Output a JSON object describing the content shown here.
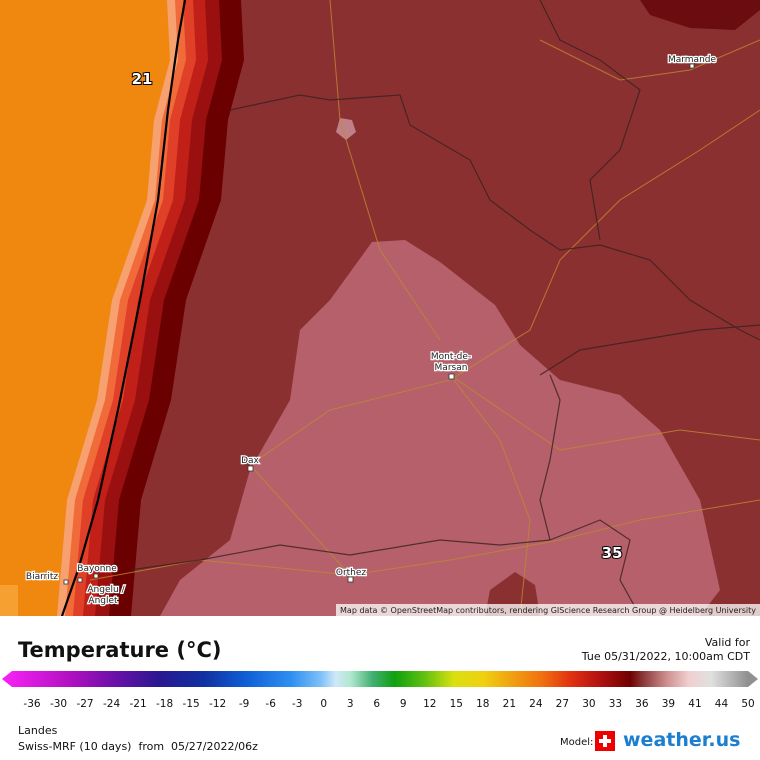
{
  "map": {
    "places": [
      [
        "Marmande"
      ],
      [
        "Mont-de-",
        "Marsan"
      ],
      [
        "Dax"
      ],
      [
        "Biarritz"
      ],
      [
        "Bayonne"
      ],
      [
        "Angelu /",
        "Anglet"
      ],
      [
        "Orthez"
      ]
    ],
    "contour_labels": [
      "21",
      "35"
    ],
    "attribution": "Map data © OpenStreetMap contributors, rendering GIScience Research Group @ Heidelberg University"
  },
  "legend": {
    "title": "Temperature (°C)",
    "ticks": [
      -36,
      -30,
      -27,
      -24,
      -21,
      -18,
      -15,
      -12,
      -9,
      -6,
      -3,
      0,
      3,
      6,
      9,
      12,
      15,
      18,
      21,
      24,
      27,
      30,
      33,
      36,
      39,
      41,
      44,
      50
    ]
  },
  "valid": {
    "label": "Valid for",
    "time": "Tue 05/31/2022, 10:00am CDT"
  },
  "footer": {
    "region": "Landes",
    "model_run": "Swiss-MRF (10 days)  from  05/27/2022/06z",
    "model_label": "Model:",
    "brand": "weather.us"
  }
}
